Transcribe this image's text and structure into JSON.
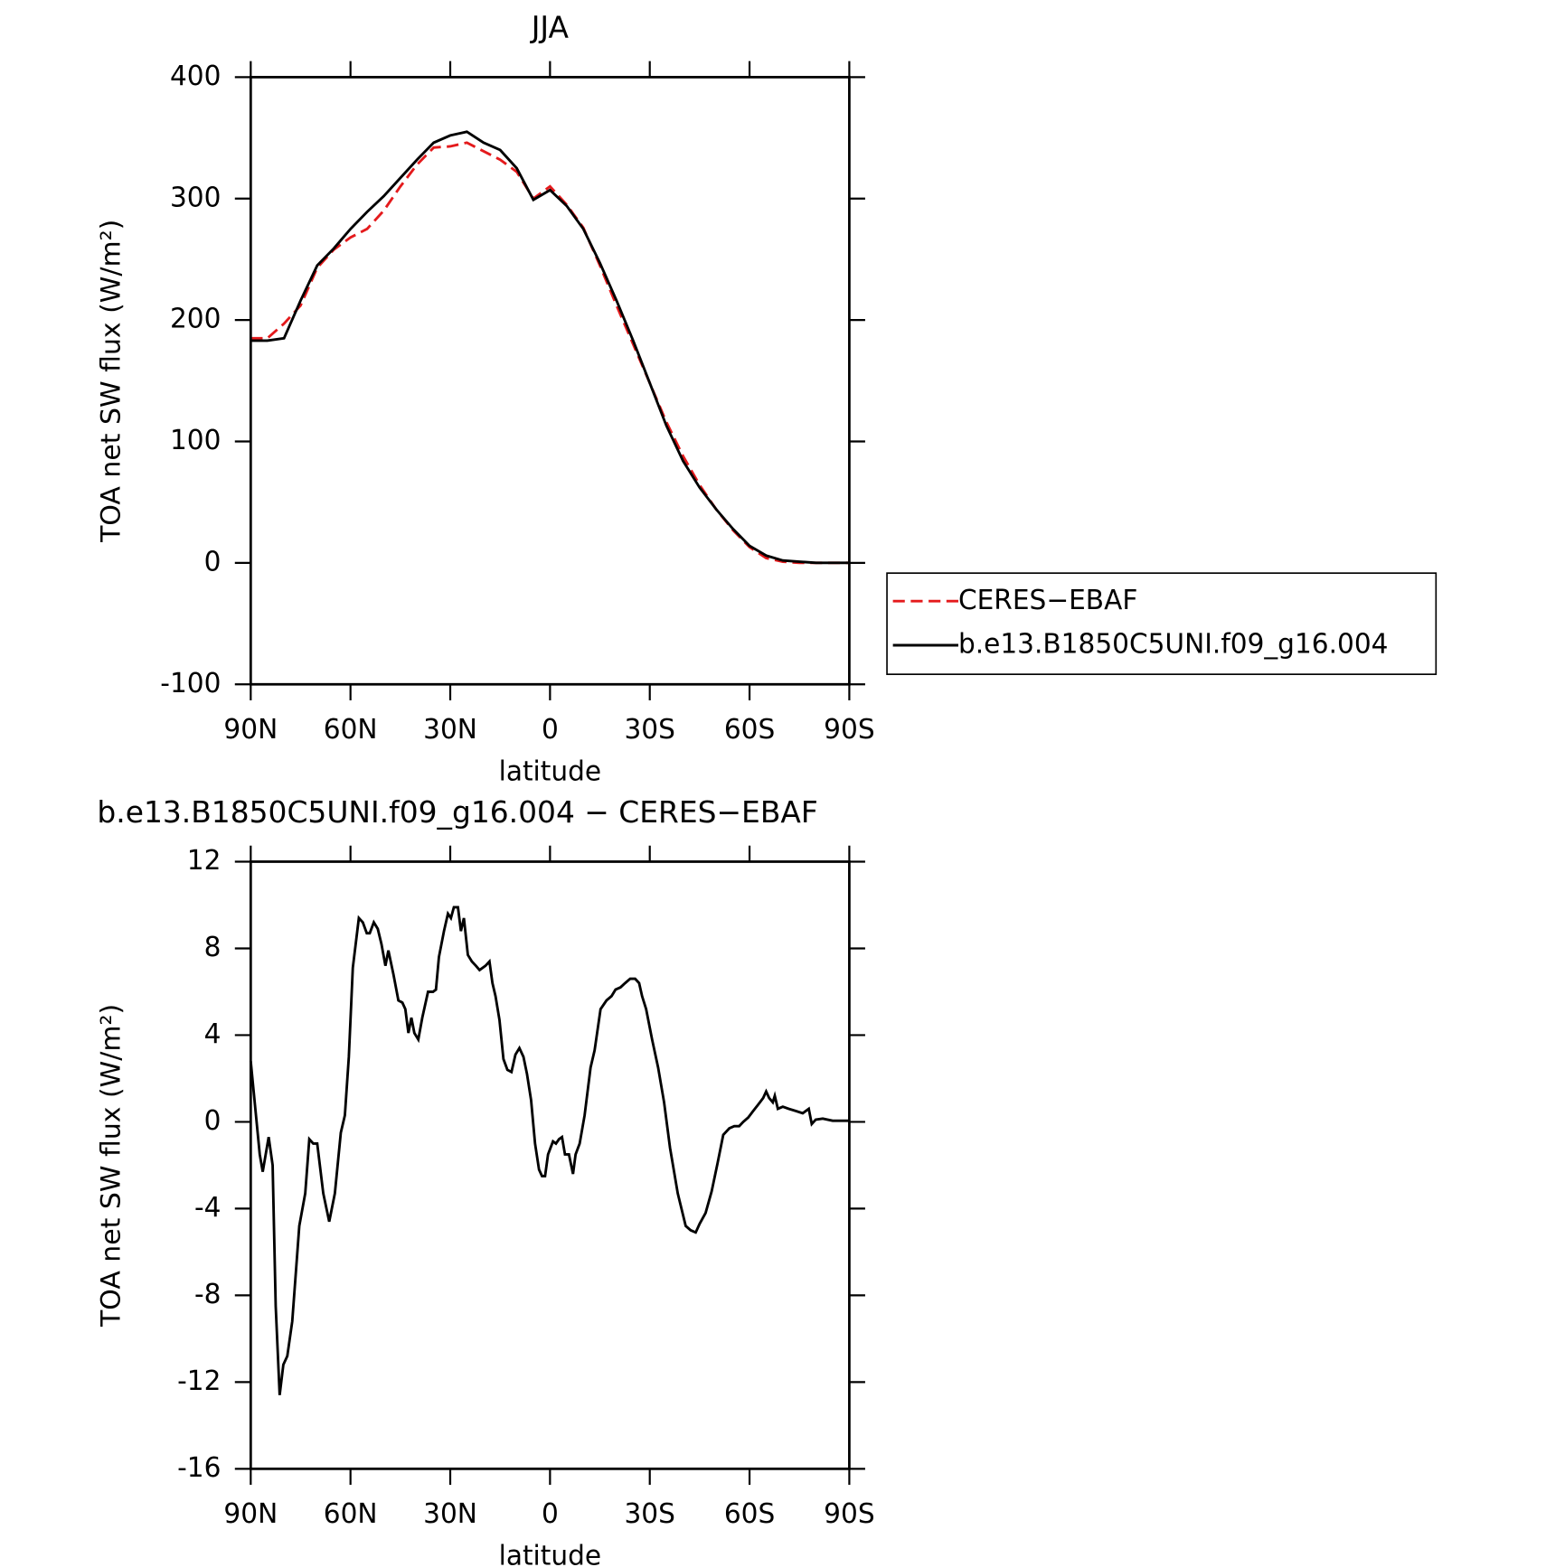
{
  "chart_data": [
    {
      "type": "line",
      "title": "JJA",
      "xlabel": "latitude",
      "ylabel": "TOA net SW flux (W/m²)",
      "x": [
        90,
        85,
        80,
        75,
        70,
        65,
        60,
        55,
        50,
        45,
        40,
        35,
        30,
        25,
        20,
        15,
        10,
        5,
        0,
        -5,
        -10,
        -15,
        -20,
        -25,
        -30,
        -35,
        -40,
        -45,
        -50,
        -55,
        -60,
        -65,
        -70,
        -75,
        -80,
        -85,
        -90
      ],
      "series": [
        {
          "name": "CERES−EBAF",
          "color": "#e41a1c",
          "dash": "dashed",
          "values": [
            185,
            185,
            197,
            212,
            243,
            258,
            268,
            275,
            290,
            310,
            328,
            342,
            343,
            346,
            339,
            332,
            322,
            300,
            310,
            295,
            276,
            245,
            212,
            180,
            148,
            116,
            88,
            64,
            44,
            27,
            13,
            4,
            1,
            0,
            0,
            0,
            0
          ]
        },
        {
          "name": "b.e13.B1850C5UNI.f09_g16.004",
          "color": "#000000",
          "dash": "solid",
          "values": [
            183,
            183,
            185,
            216,
            245,
            259,
            275,
            289,
            302,
            317,
            332,
            346,
            352,
            355,
            346,
            340,
            325,
            299,
            307,
            294,
            275,
            247,
            216,
            183,
            148,
            113,
            84,
            62,
            44,
            28,
            14,
            6,
            2,
            1,
            0,
            0,
            0
          ]
        }
      ],
      "xlim": [
        90,
        -90
      ],
      "xticks": [
        {
          "value": 90,
          "label": "90N"
        },
        {
          "value": 60,
          "label": "60N"
        },
        {
          "value": 30,
          "label": "30N"
        },
        0,
        {
          "value": -30,
          "label": "30S"
        },
        {
          "value": -60,
          "label": "60S"
        },
        {
          "value": -90,
          "label": "90S"
        }
      ],
      "ylim": [
        -100,
        400
      ],
      "yticks": [
        -100,
        0,
        100,
        200,
        300,
        400
      ],
      "legend": "right"
    },
    {
      "type": "line",
      "title": "b.e13.B1850C5UNI.f09_g16.004 − CERES−EBAF",
      "xlabel": "latitude",
      "ylabel": "TOA net SW flux (W/m²)",
      "x": [
        90,
        87.3,
        86.4,
        84.6,
        83.4,
        82.5,
        81.3,
        80.2,
        79,
        77.5,
        75.4,
        73.6,
        72.4,
        71.2,
        70,
        68.2,
        66.4,
        64.7,
        62.9,
        61.7,
        60.5,
        59.3,
        57.5,
        56.3,
        55.1,
        54.2,
        53,
        51.8,
        50.7,
        49.5,
        48.6,
        47.1,
        45.6,
        44.4,
        43.5,
        42.6,
        41.7,
        40.8,
        39.6,
        38.4,
        36.7,
        35.2,
        34.3,
        33.4,
        31.9,
        30.7,
        29.8,
        28.9,
        27.7,
        26.8,
        25.9,
        24.7,
        23.5,
        22.3,
        21.2,
        19.4,
        18.2,
        17.3,
        16.4,
        15.2,
        14,
        12.8,
        11.6,
        10.4,
        9.2,
        8,
        6.9,
        5.7,
        4.5,
        3.3,
        2.4,
        1.5,
        0.6,
        -0.9,
        -1.8,
        -2.7,
        -3.6,
        -4.5,
        -5.7,
        -6.9,
        -7.7,
        -8.9,
        -10.4,
        -12.2,
        -13.4,
        -15.2,
        -17,
        -18.5,
        -19.7,
        -21.2,
        -22.6,
        -24.1,
        -25.6,
        -26.8,
        -27.7,
        -28.9,
        -30.7,
        -32.5,
        -34.3,
        -36.1,
        -38.4,
        -40.8,
        -42.3,
        -43.8,
        -45,
        -46.8,
        -48.6,
        -50.4,
        -52.1,
        -53.9,
        -55.4,
        -56.9,
        -58.1,
        -59.6,
        -61.1,
        -62.6,
        -64.1,
        -65,
        -65.9,
        -67,
        -67.6,
        -68.5,
        -70,
        -71.8,
        -73.9,
        -76,
        -77.8,
        -78.7,
        -79.9,
        -82,
        -85,
        -90
      ],
      "series": [
        {
          "name": "b.e13.B1850C5UNI.f09_g16.004 − CERES−EBAF",
          "color": "#000000",
          "dash": "solid",
          "values": [
            2.8,
            -1.5,
            -2.3,
            -0.7,
            -2,
            -8.5,
            -12.6,
            -11.2,
            -10.8,
            -9.2,
            -4.8,
            -3.3,
            -0.8,
            -1,
            -1,
            -3.3,
            -4.6,
            -3.3,
            -0.5,
            0.3,
            3,
            7.1,
            9.4,
            9.2,
            8.7,
            8.7,
            9.2,
            8.9,
            8.2,
            7.2,
            7.9,
            6.8,
            5.6,
            5.5,
            5.2,
            4.1,
            4.8,
            4.1,
            3.8,
            4.8,
            6,
            6,
            6.1,
            7.6,
            8.8,
            9.6,
            9.4,
            9.9,
            9.9,
            8.8,
            9.4,
            7.7,
            7.4,
            7.2,
            7,
            7.2,
            7.4,
            6.4,
            5.8,
            4.7,
            2.9,
            2.4,
            2.3,
            3.1,
            3.4,
            3,
            2.2,
            1,
            -1,
            -2.2,
            -2.5,
            -2.5,
            -1.5,
            -0.9,
            -1,
            -0.8,
            -0.7,
            -1.5,
            -1.5,
            -2.4,
            -1.5,
            -1,
            0.3,
            2.5,
            3.3,
            5.2,
            5.6,
            5.8,
            6.1,
            6.2,
            6.4,
            6.6,
            6.6,
            6.4,
            5.8,
            5.2,
            3.8,
            2.5,
            0.9,
            -1.2,
            -3.3,
            -4.8,
            -5,
            -5.1,
            -4.7,
            -4.2,
            -3.2,
            -1.9,
            -0.6,
            -0.3,
            -0.2,
            -0.2,
            0,
            0.2,
            0.5,
            0.8,
            1.1,
            1.4,
            1.1,
            0.9,
            1.2,
            0.6,
            0.7,
            0.6,
            0.5,
            0.4,
            0.6,
            -0.1,
            0.1,
            0.15,
            0.05,
            0.05
          ]
        }
      ],
      "xlim": [
        90,
        -90
      ],
      "xticks": [
        {
          "value": 90,
          "label": "90N"
        },
        {
          "value": 60,
          "label": "60N"
        },
        {
          "value": 30,
          "label": "30N"
        },
        0,
        {
          "value": -30,
          "label": "30S"
        },
        {
          "value": -60,
          "label": "60S"
        },
        {
          "value": -90,
          "label": "90S"
        }
      ],
      "ylim": [
        -16,
        12
      ],
      "yticks": [
        -16,
        -12,
        -8,
        -4,
        0,
        4,
        8,
        12
      ]
    }
  ]
}
